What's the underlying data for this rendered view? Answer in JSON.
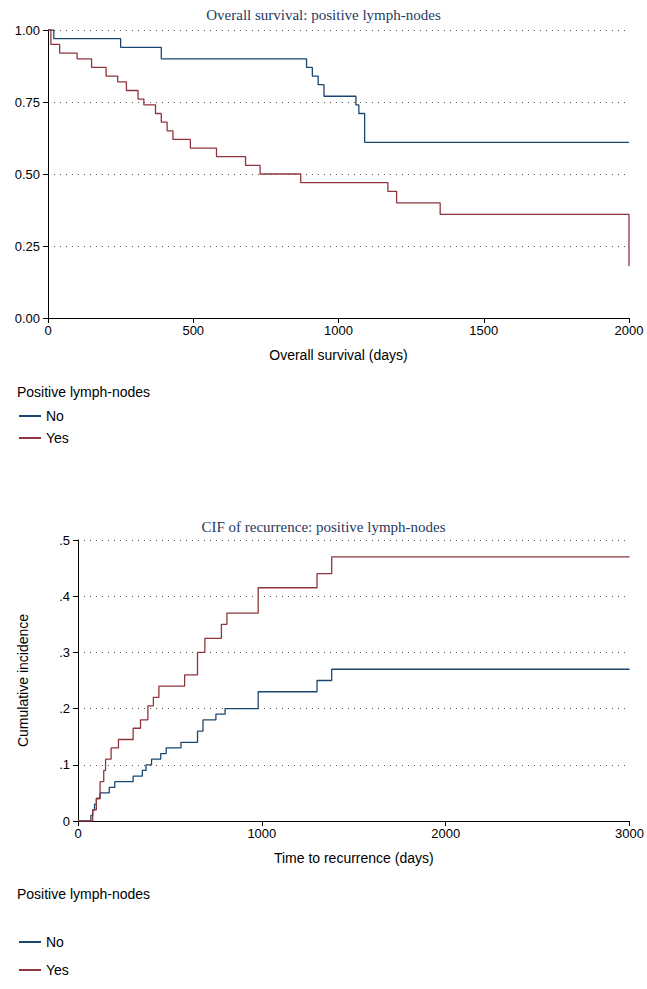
{
  "chart_data": [
    {
      "type": "line",
      "title": "Overall survival: positive lymph-nodes",
      "x_label": "Overall survival (days)",
      "legend_title": "Positive lymph-nodes",
      "line_style": "step",
      "grid": true,
      "legend": "bottom-left",
      "xlim": [
        0,
        2000
      ],
      "xticks": [
        0,
        500,
        1000,
        1500,
        2000
      ],
      "ylim": [
        0,
        1
      ],
      "yticks": [
        {
          "value": 0,
          "label": "0.00"
        },
        {
          "value": 0.25,
          "label": "0.25"
        },
        {
          "value": 0.5,
          "label": "0.50"
        },
        {
          "value": 0.75,
          "label": "0.75"
        },
        {
          "value": 1,
          "label": "1.00"
        }
      ],
      "series": [
        {
          "name": "No",
          "color": "#1a476f",
          "x": [
            0,
            20,
            250,
            390,
            890,
            910,
            930,
            950,
            1060,
            1070,
            1090,
            2000
          ],
          "values": [
            1,
            0.97,
            0.94,
            0.9,
            0.87,
            0.84,
            0.81,
            0.77,
            0.74,
            0.71,
            0.61,
            0.61
          ]
        },
        {
          "name": "Yes",
          "color": "#90353b",
          "x": [
            0,
            10,
            40,
            100,
            150,
            200,
            240,
            270,
            310,
            330,
            370,
            390,
            410,
            430,
            490,
            580,
            680,
            730,
            870,
            1170,
            1200,
            1350,
            2000,
            2000
          ],
          "values": [
            1,
            0.95,
            0.92,
            0.9,
            0.87,
            0.84,
            0.82,
            0.79,
            0.76,
            0.74,
            0.71,
            0.68,
            0.65,
            0.62,
            0.59,
            0.56,
            0.53,
            0.5,
            0.47,
            0.44,
            0.4,
            0.36,
            0.36,
            0.18
          ]
        }
      ]
    },
    {
      "type": "line",
      "title": "CIF of recurrence: positive lymph-nodes",
      "x_label": "Time to recurrence (days)",
      "y_label": "Cumulative incidence",
      "legend_title": "Positive lymph-nodes",
      "line_style": "step",
      "grid": true,
      "legend": "bottom-left",
      "xlim": [
        0,
        3000
      ],
      "xticks": [
        0,
        1000,
        2000,
        3000
      ],
      "ylim": [
        0,
        0.5
      ],
      "yticks": [
        0,
        {
          "value": 0.1,
          "label": ".1"
        },
        {
          "value": 0.2,
          "label": ".2"
        },
        {
          "value": 0.3,
          "label": ".3"
        },
        {
          "value": 0.4,
          "label": ".4"
        },
        {
          "value": 0.5,
          "label": ".5"
        }
      ],
      "series": [
        {
          "name": "No",
          "color": "#1a476f",
          "x": [
            0,
            50,
            70,
            80,
            90,
            100,
            120,
            170,
            200,
            300,
            350,
            370,
            400,
            450,
            480,
            560,
            650,
            680,
            750,
            800,
            980,
            1300,
            1380,
            3000
          ],
          "values": [
            0,
            0,
            0.01,
            0.02,
            0.03,
            0.04,
            0.05,
            0.06,
            0.07,
            0.08,
            0.09,
            0.1,
            0.11,
            0.12,
            0.13,
            0.14,
            0.16,
            0.18,
            0.19,
            0.2,
            0.23,
            0.25,
            0.27,
            0.27
          ]
        },
        {
          "name": "Yes",
          "color": "#90353b",
          "x": [
            0,
            60,
            80,
            100,
            120,
            140,
            150,
            180,
            220,
            300,
            340,
            380,
            410,
            440,
            580,
            650,
            690,
            780,
            810,
            980,
            1300,
            1380,
            3000
          ],
          "values": [
            0,
            0,
            0.02,
            0.04,
            0.07,
            0.09,
            0.11,
            0.13,
            0.145,
            0.165,
            0.18,
            0.205,
            0.22,
            0.24,
            0.26,
            0.3,
            0.325,
            0.35,
            0.37,
            0.415,
            0.44,
            0.47,
            0.47
          ]
        }
      ]
    }
  ]
}
